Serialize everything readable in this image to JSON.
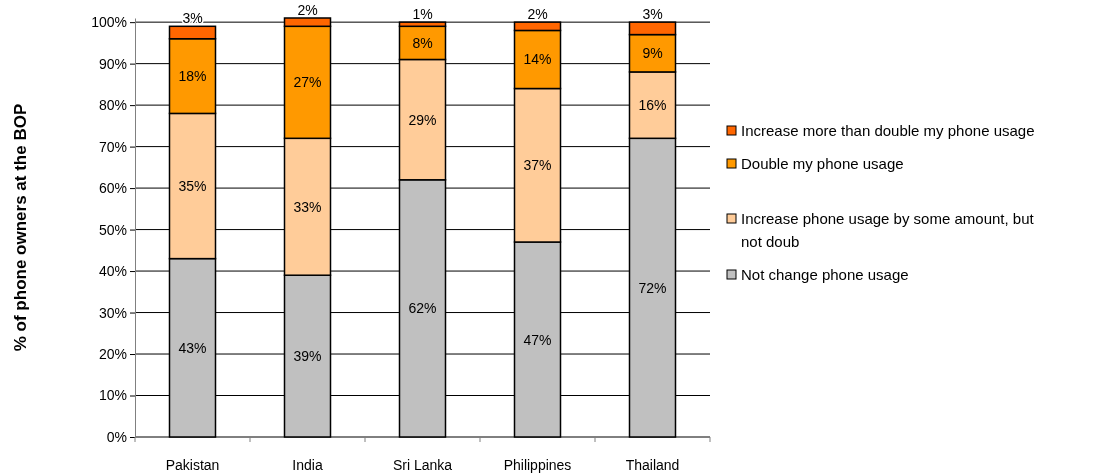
{
  "chart_data": {
    "type": "bar",
    "stacked": true,
    "ylabel": "% of phone owners at the BOP",
    "categories": [
      "Pakistan",
      "India",
      "Sri Lanka",
      "Philippines",
      "Thailand"
    ],
    "series": [
      {
        "name": "Not change phone usage",
        "color": "#c0c0c0",
        "values": [
          43,
          39,
          62,
          47,
          72
        ],
        "value_labels": [
          "43%",
          "39%",
          "62%",
          "47%",
          "72%"
        ]
      },
      {
        "name": "Increase phone usage by some amount, but not doub",
        "color": "#ffcc99",
        "values": [
          35,
          33,
          29,
          37,
          16
        ],
        "value_labels": [
          "35%",
          "33%",
          "29%",
          "37%",
          "16%"
        ]
      },
      {
        "name": "Double my phone usage",
        "color": "#ff9900",
        "values": [
          18,
          27,
          8,
          14,
          9
        ],
        "value_labels": [
          "18%",
          "27%",
          "8%",
          "14%",
          "9%"
        ]
      },
      {
        "name": "Increase more than double my phone usage",
        "color": "#ff6600",
        "values": [
          3,
          2,
          1,
          2,
          3
        ],
        "value_labels": [
          "3%",
          "2%",
          "1%",
          "2%",
          "3%"
        ]
      }
    ],
    "ylim": [
      0,
      101
    ],
    "yticks": [
      {
        "value": 0,
        "label": "0%"
      },
      {
        "value": 10,
        "label": "10%"
      },
      {
        "value": 20,
        "label": "20%"
      },
      {
        "value": 30,
        "label": "30%"
      },
      {
        "value": 40,
        "label": "40%"
      },
      {
        "value": 50,
        "label": "50%"
      },
      {
        "value": 60,
        "label": "60%"
      },
      {
        "value": 70,
        "label": "70%"
      },
      {
        "value": 80,
        "label": "80%"
      },
      {
        "value": 90,
        "label": "90%"
      },
      {
        "value": 100,
        "label": "100%"
      }
    ],
    "grid": "y",
    "legend": "right"
  }
}
